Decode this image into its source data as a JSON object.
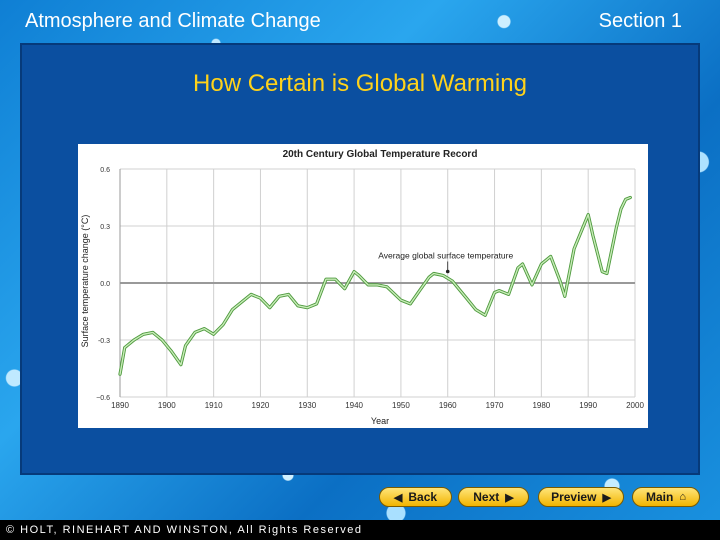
{
  "header": {
    "left": "Atmosphere and Climate Change",
    "right": "Section 1"
  },
  "slide_title": "How Certain is Global Warming",
  "nav": {
    "back": "Back",
    "next": "Next",
    "preview": "Preview",
    "main": "Main"
  },
  "footer": "© HOLT, RINEHART AND WINSTON, All Rights Reserved",
  "colors": {
    "line": "#7cc46a",
    "zero_line": "#999999",
    "title_yellow": "#ffd21a"
  },
  "chart_data": {
    "type": "line",
    "title": "20th Century Global Temperature Record",
    "xlabel": "Year",
    "ylabel": "Surface temperature change (°C)",
    "xlim": [
      1890,
      2000
    ],
    "ylim": [
      -0.6,
      0.6
    ],
    "x_ticks": [
      "1890",
      "1900",
      "1910",
      "1920",
      "1930",
      "1940",
      "1950",
      "1960",
      "1970",
      "1980",
      "1990",
      "2000"
    ],
    "y_ticks": [
      "0.6",
      "0.3",
      "0.0",
      "-0.3",
      "−0.6"
    ],
    "y_tick_values": [
      0.6,
      0.3,
      0.0,
      -0.3,
      -0.6
    ],
    "annotation": "Average global surface temperature",
    "annotation_point": {
      "x": 1960,
      "y": 0.05
    },
    "series": [
      {
        "x": [
          1890,
          1891,
          1893,
          1895,
          1897,
          1899,
          1901,
          1903,
          1904,
          1906,
          1908,
          1910,
          1912,
          1914,
          1916,
          1918,
          1920,
          1922,
          1924,
          1926,
          1928,
          1930,
          1932,
          1934,
          1936,
          1938,
          1940,
          1941,
          1943,
          1945,
          1947,
          1950,
          1952,
          1954,
          1956,
          1957,
          1959,
          1961,
          1962,
          1964,
          1966,
          1968,
          1970,
          1971,
          1973,
          1975,
          1976,
          1978,
          1980,
          1982,
          1984,
          1985,
          1987,
          1988,
          1990,
          1991,
          1993,
          1994,
          1996,
          1997,
          1998,
          1999
        ],
        "y": [
          -0.48,
          -0.34,
          -0.3,
          -0.27,
          -0.26,
          -0.3,
          -0.36,
          -0.43,
          -0.33,
          -0.26,
          -0.24,
          -0.27,
          -0.22,
          -0.14,
          -0.1,
          -0.06,
          -0.08,
          -0.13,
          -0.07,
          -0.06,
          -0.12,
          -0.13,
          -0.11,
          0.02,
          0.02,
          -0.03,
          0.06,
          0.04,
          -0.01,
          -0.01,
          -0.02,
          -0.09,
          -0.11,
          -0.04,
          0.03,
          0.05,
          0.04,
          0.01,
          -0.02,
          -0.08,
          -0.14,
          -0.17,
          -0.05,
          -0.04,
          -0.06,
          0.08,
          0.1,
          -0.01,
          0.1,
          0.14,
          0.01,
          -0.07,
          0.18,
          0.24,
          0.36,
          0.25,
          0.06,
          0.05,
          0.29,
          0.39,
          0.44,
          0.45
        ]
      }
    ]
  }
}
